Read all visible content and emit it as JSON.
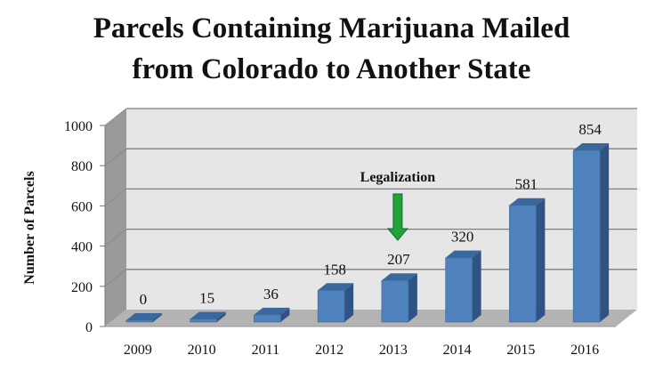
{
  "chart_data": {
    "type": "bar",
    "style": "3d-column",
    "title": "Parcels Containing Marijuana Mailed from Colorado to Another State",
    "title_lines": [
      "Parcels Containing Marijuana Mailed",
      "from Colorado to Another State"
    ],
    "xlabel": "",
    "ylabel": "Number of Parcels",
    "categories": [
      "2009",
      "2010",
      "2011",
      "2012",
      "2013",
      "2014",
      "2015",
      "2016"
    ],
    "values": [
      0,
      15,
      36,
      158,
      207,
      320,
      581,
      854
    ],
    "data_labels": [
      "0",
      "15",
      "36",
      "158",
      "207",
      "320",
      "581",
      "854"
    ],
    "ylim": [
      0,
      1000
    ],
    "yticks": [
      0,
      200,
      400,
      600,
      800,
      1000
    ],
    "ytick_labels": [
      "0",
      "200",
      "400",
      "600",
      "800",
      "1000"
    ],
    "grid": true,
    "legend": "none",
    "annotations": [
      {
        "text": "Legalization",
        "category": "2013",
        "marker": "down-arrow"
      }
    ],
    "colors": {
      "bar_front": "#4f81bd",
      "bar_side": "#2f5382",
      "bar_top": "#3a679c",
      "back_wall": "#e6e6e6",
      "side_wall": "#9a9a9a",
      "floor": "#b3b3b3",
      "gridline": "#7f7f7f",
      "arrow": "#1fa33c"
    }
  }
}
